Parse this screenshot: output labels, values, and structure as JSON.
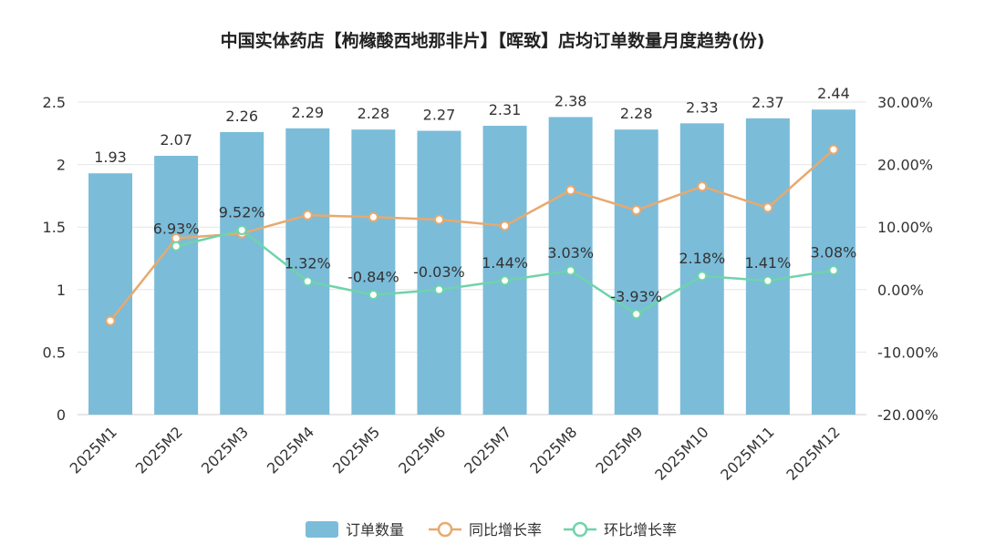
{
  "chart_data": {
    "type": "bar",
    "title": "中国实体药店【枸橼酸西地那非片】【晖致】店均订单数量月度趋势(份)",
    "categories": [
      "2025M1",
      "2025M2",
      "2025M3",
      "2025M4",
      "2025M5",
      "2025M6",
      "2025M7",
      "2025M8",
      "2025M9",
      "2025M10",
      "2025M11",
      "2025M12"
    ],
    "left_axis": {
      "min": 0,
      "max": 2.5,
      "ticks": [
        "0",
        "0.5",
        "1",
        "1.5",
        "2",
        "2.5"
      ],
      "tick_values": [
        0,
        0.5,
        1,
        1.5,
        2,
        2.5
      ]
    },
    "right_axis": {
      "min": -20,
      "max": 30,
      "ticks": [
        "-20.00%",
        "-10.00%",
        "0.00%",
        "10.00%",
        "20.00%",
        "30.00%"
      ],
      "tick_values": [
        -20,
        -10,
        0,
        10,
        20,
        30
      ]
    },
    "series": [
      {
        "name": "订单数量",
        "kind": "bar",
        "axis": "left",
        "color": "#7bbcd9",
        "values": [
          1.93,
          2.07,
          2.26,
          2.29,
          2.28,
          2.27,
          2.31,
          2.38,
          2.28,
          2.33,
          2.37,
          2.44
        ],
        "labels": [
          "1.93",
          "2.07",
          "2.26",
          "2.29",
          "2.28",
          "2.27",
          "2.31",
          "2.38",
          "2.28",
          "2.33",
          "2.37",
          "2.44"
        ]
      },
      {
        "name": "同比增长率",
        "kind": "line",
        "axis": "right",
        "color": "#e8a96e",
        "values": [
          -5.0,
          8.2,
          9.0,
          11.9,
          11.6,
          11.2,
          10.2,
          15.9,
          12.7,
          16.5,
          13.1,
          22.4
        ]
      },
      {
        "name": "环比增长率",
        "kind": "line",
        "axis": "right",
        "color": "#6fd3ab",
        "values": [
          null,
          6.93,
          9.52,
          1.32,
          -0.84,
          -0.03,
          1.44,
          3.03,
          -3.93,
          2.18,
          1.41,
          3.08
        ],
        "labels": [
          "",
          "6.93%",
          "9.52%",
          "1.32%",
          "-0.84%",
          "-0.03%",
          "1.44%",
          "3.03%",
          "-3.93%",
          "2.18%",
          "1.41%",
          "3.08%"
        ]
      }
    ]
  }
}
